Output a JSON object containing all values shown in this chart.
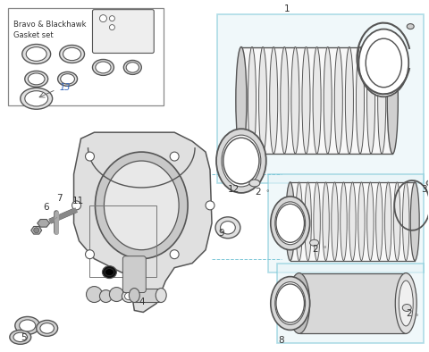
{
  "bg": "#ffffff",
  "dc": "#555555",
  "lc": "#aaaaaa",
  "vlg": "#f0f0f0",
  "panel_fill": "#e6f4f8",
  "panel_edge": "#7ec8d8",
  "housing_fill": "#e0e0e0",
  "housing_edge": "#555555",
  "ring_fill": "#d8d8d8",
  "title_color": "#333333",
  "blue_num": "#3366bb",
  "label_color": "#333333"
}
